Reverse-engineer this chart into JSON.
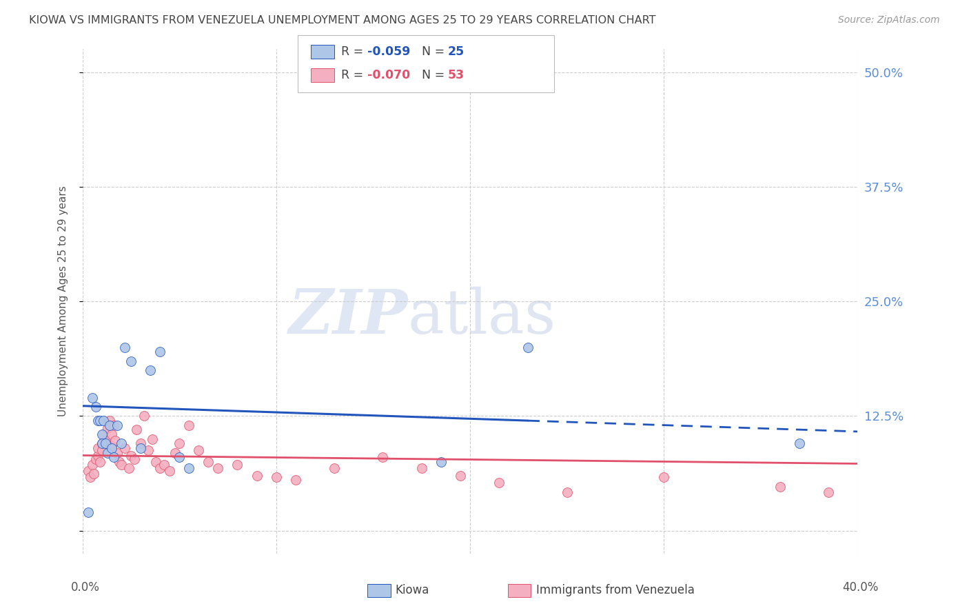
{
  "title": "KIOWA VS IMMIGRANTS FROM VENEZUELA UNEMPLOYMENT AMONG AGES 25 TO 29 YEARS CORRELATION CHART",
  "source": "Source: ZipAtlas.com",
  "ylabel": "Unemployment Among Ages 25 to 29 years",
  "xmin": 0.0,
  "xmax": 0.4,
  "ymin": -0.025,
  "ymax": 0.525,
  "yticks": [
    0.0,
    0.125,
    0.25,
    0.375,
    0.5
  ],
  "ytick_labels": [
    "",
    "12.5%",
    "25.0%",
    "37.5%",
    "50.0%"
  ],
  "xticks": [
    0.0,
    0.1,
    0.2,
    0.3,
    0.4
  ],
  "kiowa_color": "#aec6e8",
  "venezuela_color": "#f4afc0",
  "kiowa_line_color": "#2255bb",
  "venezuela_line_color": "#e0506a",
  "kiowa_R": -0.059,
  "kiowa_N": 25,
  "venezuela_R": -0.07,
  "venezuela_N": 53,
  "watermark_zip": "ZIP",
  "watermark_atlas": "atlas",
  "kiowa_scatter_x": [
    0.003,
    0.005,
    0.007,
    0.008,
    0.009,
    0.01,
    0.01,
    0.011,
    0.012,
    0.013,
    0.014,
    0.015,
    0.016,
    0.018,
    0.02,
    0.022,
    0.025,
    0.03,
    0.035,
    0.04,
    0.05,
    0.055,
    0.185,
    0.23,
    0.37
  ],
  "kiowa_scatter_y": [
    0.02,
    0.145,
    0.135,
    0.12,
    0.12,
    0.105,
    0.095,
    0.12,
    0.095,
    0.085,
    0.115,
    0.09,
    0.08,
    0.115,
    0.095,
    0.2,
    0.185,
    0.09,
    0.175,
    0.195,
    0.08,
    0.068,
    0.075,
    0.2,
    0.095
  ],
  "venezuela_scatter_x": [
    0.003,
    0.004,
    0.005,
    0.006,
    0.007,
    0.008,
    0.008,
    0.009,
    0.01,
    0.01,
    0.011,
    0.012,
    0.013,
    0.014,
    0.015,
    0.015,
    0.016,
    0.017,
    0.018,
    0.019,
    0.02,
    0.022,
    0.024,
    0.025,
    0.027,
    0.028,
    0.03,
    0.032,
    0.034,
    0.036,
    0.038,
    0.04,
    0.042,
    0.045,
    0.048,
    0.05,
    0.055,
    0.06,
    0.065,
    0.07,
    0.08,
    0.09,
    0.1,
    0.11,
    0.13,
    0.155,
    0.175,
    0.195,
    0.215,
    0.25,
    0.3,
    0.36,
    0.385
  ],
  "venezuela_scatter_y": [
    0.065,
    0.058,
    0.072,
    0.062,
    0.078,
    0.082,
    0.09,
    0.075,
    0.095,
    0.088,
    0.105,
    0.098,
    0.112,
    0.12,
    0.105,
    0.092,
    0.115,
    0.098,
    0.085,
    0.075,
    0.072,
    0.09,
    0.068,
    0.082,
    0.078,
    0.11,
    0.095,
    0.125,
    0.088,
    0.1,
    0.075,
    0.068,
    0.072,
    0.065,
    0.085,
    0.095,
    0.115,
    0.088,
    0.075,
    0.068,
    0.072,
    0.06,
    0.058,
    0.055,
    0.068,
    0.08,
    0.068,
    0.06,
    0.052,
    0.042,
    0.058,
    0.048,
    0.042
  ],
  "background_color": "#ffffff",
  "grid_color": "#cccccc",
  "tick_label_color": "#5b8dd9",
  "title_color": "#444444",
  "figsize": [
    14.06,
    8.92
  ],
  "dpi": 100
}
